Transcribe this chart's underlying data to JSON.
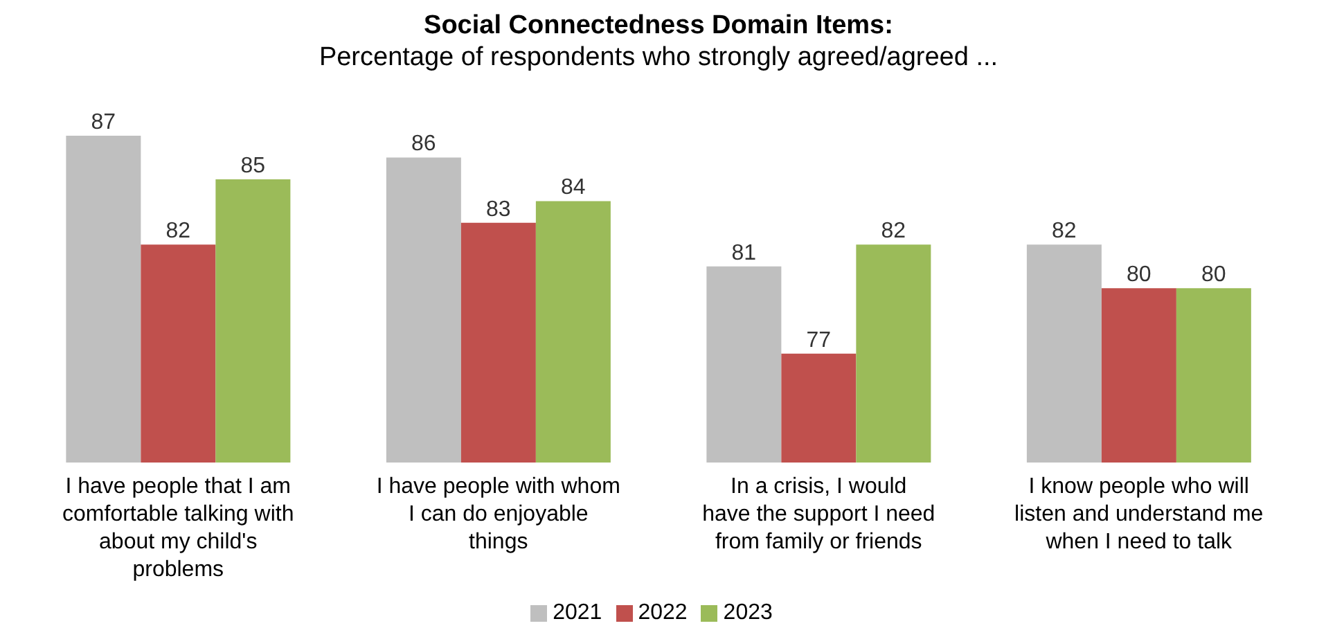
{
  "chart_data": {
    "type": "bar",
    "title": "Social Connectedness Domain Items:",
    "subtitle": "Percentage of respondents who strongly agreed/agreed ...",
    "categories": [
      "I have people that I am comfortable talking with about my child's problems",
      "I have people with whom I can do enjoyable things",
      "In a crisis, I would have the support I need from family or friends",
      "I know people who will listen and understand me when I need to talk"
    ],
    "series": [
      {
        "name": "2021",
        "color": "#bfbfbf",
        "values": [
          87,
          86,
          81,
          82
        ]
      },
      {
        "name": "2022",
        "color": "#c0504d",
        "values": [
          82,
          83,
          77,
          80
        ]
      },
      {
        "name": "2023",
        "color": "#9bbb59",
        "values": [
          85,
          84,
          82,
          80
        ]
      }
    ],
    "ylim": [
      72,
      87
    ],
    "data_labels": true,
    "legend": "bottom"
  }
}
